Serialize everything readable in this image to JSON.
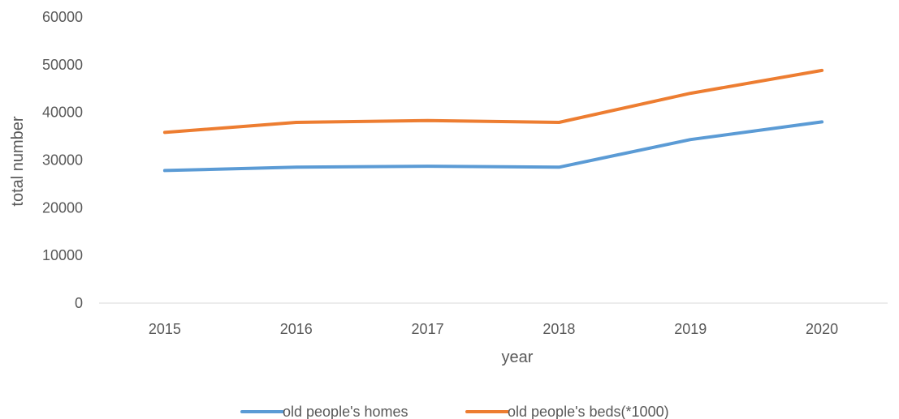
{
  "chart_data": {
    "type": "line",
    "title": "",
    "xlabel": "year",
    "ylabel": "total number",
    "categories": [
      "2015",
      "2016",
      "2017",
      "2018",
      "2019",
      "2020"
    ],
    "ylim": [
      0,
      60000
    ],
    "yticks": [
      "0",
      "10000",
      "20000",
      "30000",
      "40000",
      "50000",
      "60000"
    ],
    "grid": false,
    "legend": "bottom",
    "series": [
      {
        "name": "old people's homes",
        "color": "#5B9BD5",
        "values": [
          27800,
          28500,
          28700,
          28500,
          34300,
          38000
        ]
      },
      {
        "name": "old people's beds(*1000)",
        "color": "#ED7D31",
        "values": [
          35800,
          37900,
          38300,
          37900,
          44000,
          48800
        ]
      }
    ]
  }
}
